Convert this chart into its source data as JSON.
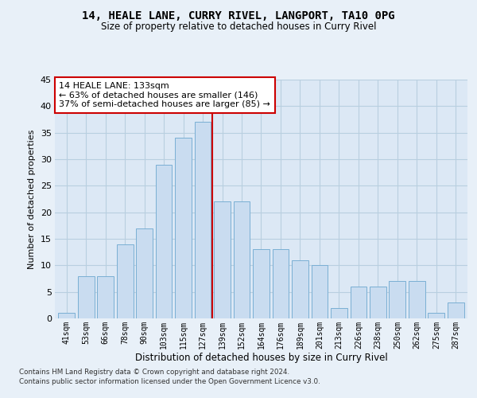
{
  "title": "14, HEALE LANE, CURRY RIVEL, LANGPORT, TA10 0PG",
  "subtitle": "Size of property relative to detached houses in Curry Rivel",
  "xlabel": "Distribution of detached houses by size in Curry Rivel",
  "ylabel": "Number of detached properties",
  "bar_labels": [
    "41sqm",
    "53sqm",
    "66sqm",
    "78sqm",
    "90sqm",
    "103sqm",
    "115sqm",
    "127sqm",
    "139sqm",
    "152sqm",
    "164sqm",
    "176sqm",
    "189sqm",
    "201sqm",
    "213sqm",
    "226sqm",
    "238sqm",
    "250sqm",
    "262sqm",
    "275sqm",
    "287sqm"
  ],
  "bar_values": [
    1,
    8,
    8,
    14,
    17,
    29,
    34,
    37,
    22,
    22,
    13,
    13,
    11,
    10,
    2,
    6,
    6,
    7,
    7,
    1,
    3
  ],
  "bar_color": "#c9dcf0",
  "bar_edge_color": "#7aafd4",
  "reference_line_x": 7.5,
  "reference_line_color": "#cc0000",
  "annotation_text": "14 HEALE LANE: 133sqm\n← 63% of detached houses are smaller (146)\n37% of semi-detached houses are larger (85) →",
  "annotation_box_facecolor": "#ffffff",
  "annotation_box_edgecolor": "#cc0000",
  "ylim_max": 45,
  "yticks": [
    0,
    5,
    10,
    15,
    20,
    25,
    30,
    35,
    40,
    45
  ],
  "plot_bg_color": "#dce8f5",
  "fig_bg_color": "#e8f0f8",
  "grid_color": "#b8cfe0",
  "footer_line1": "Contains HM Land Registry data © Crown copyright and database right 2024.",
  "footer_line2": "Contains public sector information licensed under the Open Government Licence v3.0."
}
